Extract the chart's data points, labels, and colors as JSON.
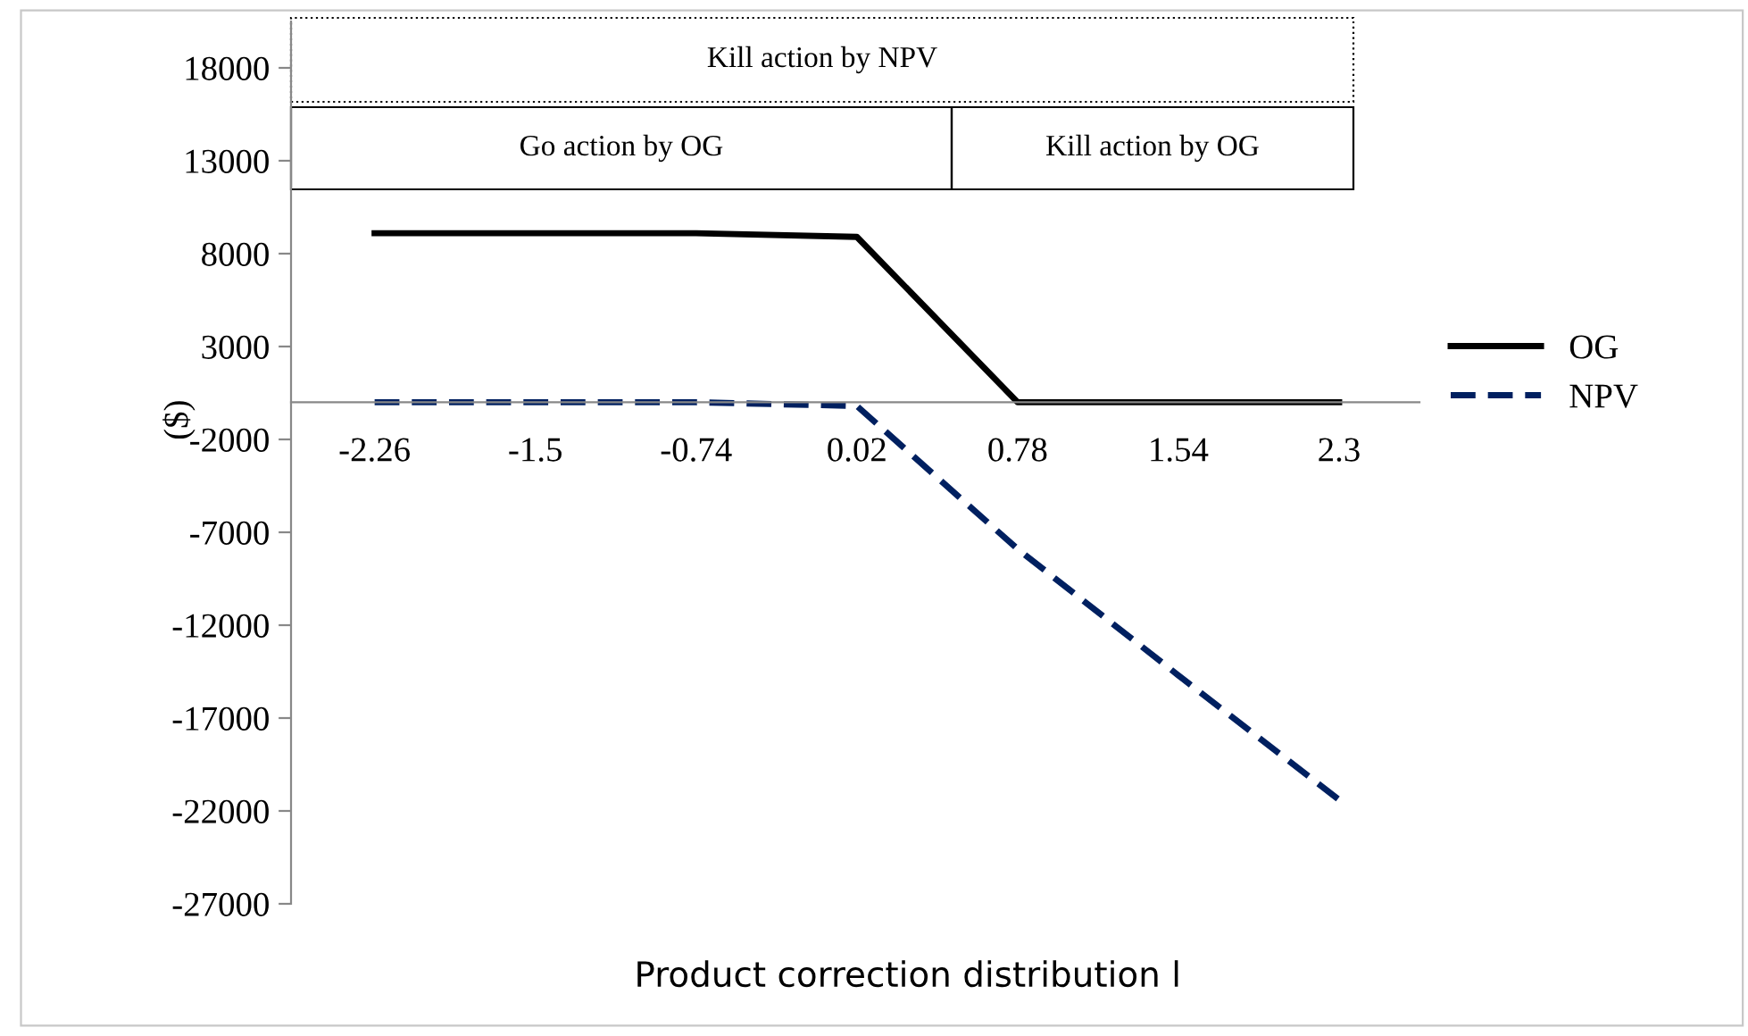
{
  "chart_data": {
    "type": "line",
    "xlabel": "Product correction distribution l",
    "ylabel": "($)",
    "categories": [
      "-2.26",
      "-1.5",
      "-0.74",
      "0.02",
      "0.78",
      "1.54",
      "2.3"
    ],
    "series": [
      {
        "name": "OG",
        "color": "#000000",
        "line_style": "solid",
        "values": [
          9100,
          9100,
          9100,
          8900,
          0,
          0,
          0
        ]
      },
      {
        "name": "NPV",
        "color": "#002060",
        "line_style": "dashed",
        "values": [
          0,
          0,
          0,
          -200,
          -7900,
          -14700,
          -21400
        ]
      }
    ],
    "ylim": [
      -27000,
      20500
    ],
    "yticks": [
      -27000,
      -22000,
      -17000,
      -12000,
      -7000,
      -2000,
      3000,
      8000,
      13000,
      18000
    ],
    "legend": "right",
    "marker": "none",
    "grid": false,
    "annotations": [
      "Kill action by NPV",
      "Go action by OG",
      "Kill action by OG"
    ]
  }
}
